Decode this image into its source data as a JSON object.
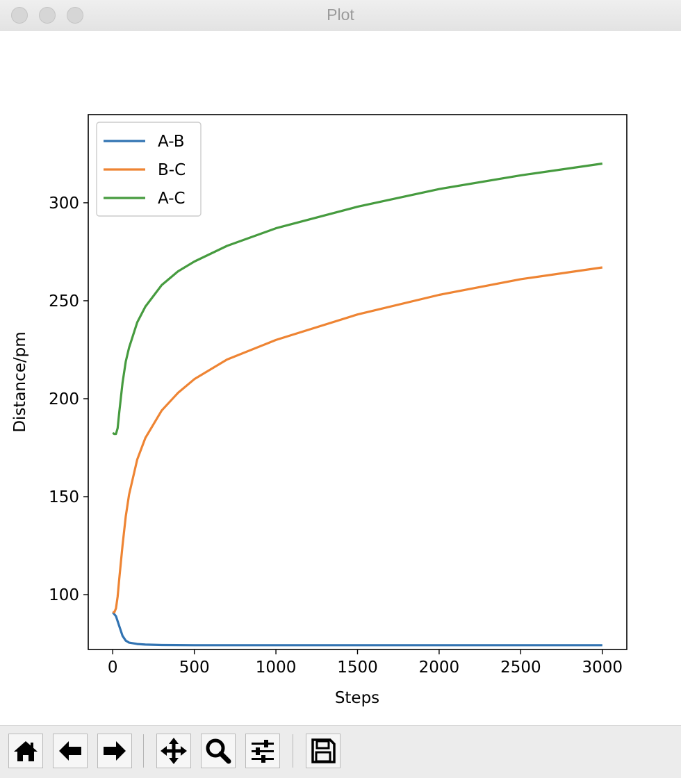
{
  "window": {
    "title": "Plot"
  },
  "chart_data": {
    "type": "line",
    "xlabel": "Steps",
    "ylabel": "Distance/pm",
    "xlim": [
      -150,
      3150
    ],
    "ylim": [
      72,
      345
    ],
    "xticks": [
      0,
      500,
      1000,
      1500,
      2000,
      2500,
      3000
    ],
    "xtick_labels": [
      "0",
      "500",
      "1000",
      "1500",
      "2000",
      "2500",
      "3000"
    ],
    "yticks": [
      100,
      150,
      200,
      250,
      300
    ],
    "ytick_labels": [
      "100",
      "150",
      "200",
      "250",
      "300"
    ],
    "legend_position": "top-left",
    "series": [
      {
        "name": "A-B",
        "color": "#3173b2",
        "x": [
          0,
          20,
          40,
          60,
          80,
          100,
          150,
          200,
          300,
          500,
          1000,
          1500,
          2000,
          2500,
          3000
        ],
        "y": [
          91,
          89,
          84,
          79,
          76.5,
          75.5,
          74.8,
          74.5,
          74.3,
          74.2,
          74.2,
          74.2,
          74.2,
          74.2,
          74.2
        ]
      },
      {
        "name": "B-C",
        "color": "#ee8433",
        "x": [
          0,
          10,
          20,
          30,
          40,
          60,
          80,
          100,
          150,
          200,
          300,
          400,
          500,
          700,
          1000,
          1500,
          2000,
          2500,
          3000
        ],
        "y": [
          91,
          91,
          93,
          99,
          108,
          125,
          140,
          151,
          169,
          180,
          194,
          203,
          210,
          220,
          230,
          243,
          253,
          261,
          267
        ]
      },
      {
        "name": "A-C",
        "color": "#469b3f",
        "x": [
          0,
          10,
          20,
          30,
          40,
          60,
          80,
          100,
          150,
          200,
          300,
          400,
          500,
          700,
          1000,
          1500,
          2000,
          2500,
          3000
        ],
        "y": [
          182.5,
          182,
          182,
          185,
          193,
          208,
          219,
          226,
          239,
          247,
          258,
          265,
          270,
          278,
          287,
          298,
          307,
          314,
          320
        ]
      }
    ]
  },
  "toolbar": {
    "buttons": [
      {
        "name": "home-button",
        "icon": "home-icon"
      },
      {
        "name": "back-button",
        "icon": "arrow-left-icon"
      },
      {
        "name": "forward-button",
        "icon": "arrow-right-icon"
      },
      {
        "name": "pan-button",
        "icon": "move-icon"
      },
      {
        "name": "zoom-button",
        "icon": "magnifier-icon"
      },
      {
        "name": "configure-subplots-button",
        "icon": "sliders-icon"
      },
      {
        "name": "save-button",
        "icon": "floppy-icon"
      }
    ]
  }
}
